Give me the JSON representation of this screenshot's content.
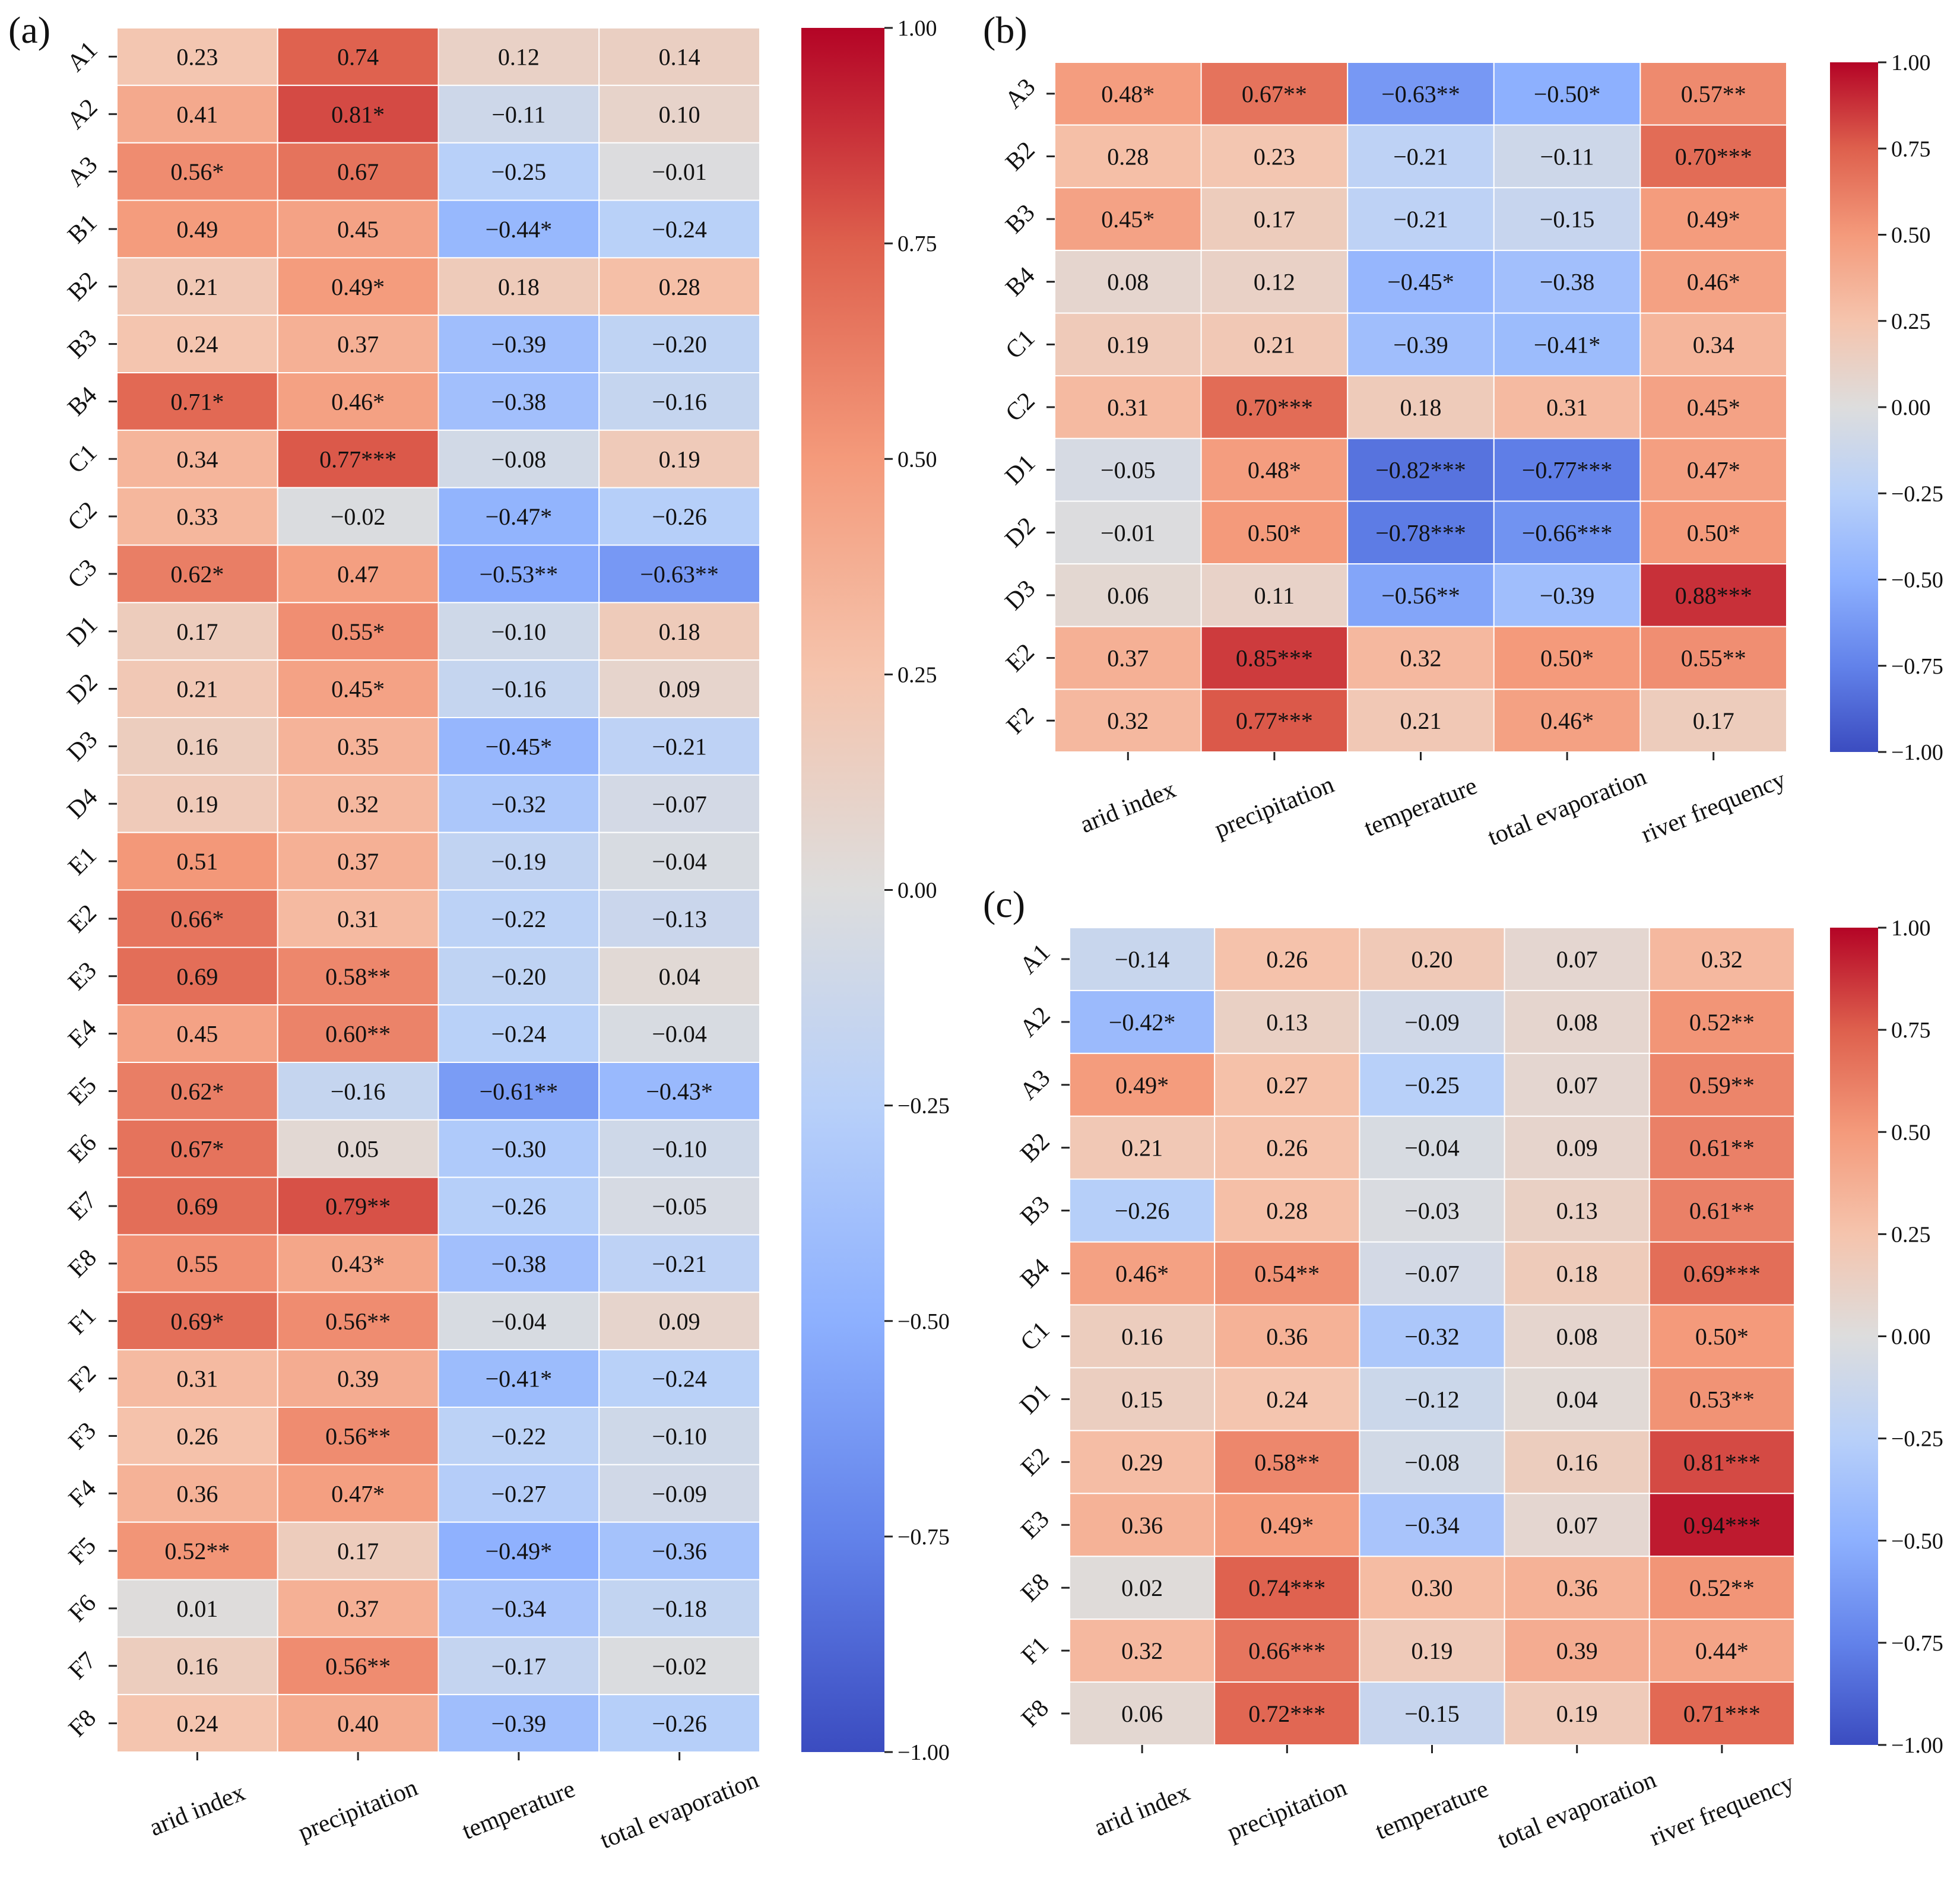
{
  "chart_data": [
    {
      "type": "heatmap",
      "panel_label": "(a)",
      "columns": [
        "arid index",
        "precipitation",
        "temperature",
        "total evaporation"
      ],
      "rows": [
        "A1",
        "A2",
        "A3",
        "B1",
        "B2",
        "B3",
        "B4",
        "C1",
        "C2",
        "C3",
        "D1",
        "D2",
        "D3",
        "D4",
        "E1",
        "E2",
        "E3",
        "E4",
        "E5",
        "E6",
        "E7",
        "E8",
        "F1",
        "F2",
        "F3",
        "F4",
        "F5",
        "F6",
        "F7",
        "F8"
      ],
      "values": [
        [
          0.23,
          0.74,
          0.12,
          0.14
        ],
        [
          0.41,
          0.81,
          -0.11,
          0.1
        ],
        [
          0.56,
          0.67,
          -0.25,
          -0.01
        ],
        [
          0.49,
          0.45,
          -0.44,
          -0.24
        ],
        [
          0.21,
          0.49,
          0.18,
          0.28
        ],
        [
          0.24,
          0.37,
          -0.39,
          -0.2
        ],
        [
          0.71,
          0.46,
          -0.38,
          -0.16
        ],
        [
          0.34,
          0.77,
          -0.08,
          0.19
        ],
        [
          0.33,
          -0.02,
          -0.47,
          -0.26
        ],
        [
          0.62,
          0.47,
          -0.53,
          -0.63
        ],
        [
          0.17,
          0.55,
          -0.1,
          0.18
        ],
        [
          0.21,
          0.45,
          -0.16,
          0.09
        ],
        [
          0.16,
          0.35,
          -0.45,
          -0.21
        ],
        [
          0.19,
          0.32,
          -0.32,
          -0.07
        ],
        [
          0.51,
          0.37,
          -0.19,
          -0.04
        ],
        [
          0.66,
          0.31,
          -0.22,
          -0.13
        ],
        [
          0.69,
          0.58,
          -0.2,
          0.04
        ],
        [
          0.45,
          0.6,
          -0.24,
          -0.04
        ],
        [
          0.62,
          -0.16,
          -0.61,
          -0.43
        ],
        [
          0.67,
          0.05,
          -0.3,
          -0.1
        ],
        [
          0.69,
          0.79,
          -0.26,
          -0.05
        ],
        [
          0.55,
          0.43,
          -0.38,
          -0.21
        ],
        [
          0.69,
          0.56,
          -0.04,
          0.09
        ],
        [
          0.31,
          0.39,
          -0.41,
          -0.24
        ],
        [
          0.26,
          0.56,
          -0.22,
          -0.1
        ],
        [
          0.36,
          0.47,
          -0.27,
          -0.09
        ],
        [
          0.52,
          0.17,
          -0.49,
          -0.36
        ],
        [
          0.01,
          0.37,
          -0.34,
          -0.18
        ],
        [
          0.16,
          0.56,
          -0.17,
          -0.02
        ],
        [
          0.24,
          0.4,
          -0.39,
          -0.26
        ]
      ],
      "labels": [
        [
          "0.23",
          "0.74",
          "0.12",
          "0.14"
        ],
        [
          "0.41",
          "0.81*",
          "−0.11",
          "0.10"
        ],
        [
          "0.56*",
          "0.67",
          "−0.25",
          "−0.01"
        ],
        [
          "0.49",
          "0.45",
          "−0.44*",
          "−0.24"
        ],
        [
          "0.21",
          "0.49*",
          "0.18",
          "0.28"
        ],
        [
          "0.24",
          "0.37",
          "−0.39",
          "−0.20"
        ],
        [
          "0.71*",
          "0.46*",
          "−0.38",
          "−0.16"
        ],
        [
          "0.34",
          "0.77***",
          "−0.08",
          "0.19"
        ],
        [
          "0.33",
          "−0.02",
          "−0.47*",
          "−0.26"
        ],
        [
          "0.62*",
          "0.47",
          "−0.53**",
          "−0.63**"
        ],
        [
          "0.17",
          "0.55*",
          "−0.10",
          "0.18"
        ],
        [
          "0.21",
          "0.45*",
          "−0.16",
          "0.09"
        ],
        [
          "0.16",
          "0.35",
          "−0.45*",
          "−0.21"
        ],
        [
          "0.19",
          "0.32",
          "−0.32",
          "−0.07"
        ],
        [
          "0.51",
          "0.37",
          "−0.19",
          "−0.04"
        ],
        [
          "0.66*",
          "0.31",
          "−0.22",
          "−0.13"
        ],
        [
          "0.69",
          "0.58**",
          "−0.20",
          "0.04"
        ],
        [
          "0.45",
          "0.60**",
          "−0.24",
          "−0.04"
        ],
        [
          "0.62*",
          "−0.16",
          "−0.61**",
          "−0.43*"
        ],
        [
          "0.67*",
          "0.05",
          "−0.30",
          "−0.10"
        ],
        [
          "0.69",
          "0.79**",
          "−0.26",
          "−0.05"
        ],
        [
          "0.55",
          "0.43*",
          "−0.38",
          "−0.21"
        ],
        [
          "0.69*",
          "0.56**",
          "−0.04",
          "0.09"
        ],
        [
          "0.31",
          "0.39",
          "−0.41*",
          "−0.24"
        ],
        [
          "0.26",
          "0.56**",
          "−0.22",
          "−0.10"
        ],
        [
          "0.36",
          "0.47*",
          "−0.27",
          "−0.09"
        ],
        [
          "0.52**",
          "0.17",
          "−0.49*",
          "−0.36"
        ],
        [
          "0.01",
          "0.37",
          "−0.34",
          "−0.18"
        ],
        [
          "0.16",
          "0.56**",
          "−0.17",
          "−0.02"
        ],
        [
          "0.24",
          "0.40",
          "−0.39",
          "−0.26"
        ]
      ],
      "colorbar": {
        "range": [
          -1,
          1
        ],
        "ticks": [
          1.0,
          0.75,
          0.5,
          0.25,
          0.0,
          -0.25,
          -0.5,
          -0.75,
          -1.0
        ],
        "tick_labels": [
          "1.00",
          "0.75",
          "0.50",
          "0.25",
          "0.00",
          "−0.25",
          "−0.50",
          "−0.75",
          "−1.00"
        ]
      },
      "colormap": "coolwarm"
    },
    {
      "type": "heatmap",
      "panel_label": "(b)",
      "columns": [
        "arid index",
        "precipitation",
        "temperature",
        "total evaporation",
        "river frequency"
      ],
      "rows": [
        "A3",
        "B2",
        "B3",
        "B4",
        "C1",
        "C2",
        "D1",
        "D2",
        "D3",
        "E2",
        "F2"
      ],
      "values": [
        [
          0.48,
          0.67,
          -0.63,
          -0.5,
          0.57
        ],
        [
          0.28,
          0.23,
          -0.21,
          -0.11,
          0.7
        ],
        [
          0.45,
          0.17,
          -0.21,
          -0.15,
          0.49
        ],
        [
          0.08,
          0.12,
          -0.45,
          -0.38,
          0.46
        ],
        [
          0.19,
          0.21,
          -0.39,
          -0.41,
          0.34
        ],
        [
          0.31,
          0.7,
          0.18,
          0.31,
          0.45
        ],
        [
          -0.05,
          0.48,
          -0.82,
          -0.77,
          0.47
        ],
        [
          -0.01,
          0.5,
          -0.78,
          -0.66,
          0.5
        ],
        [
          0.06,
          0.11,
          -0.56,
          -0.39,
          0.88
        ],
        [
          0.37,
          0.85,
          0.32,
          0.5,
          0.55
        ],
        [
          0.32,
          0.77,
          0.21,
          0.46,
          0.17
        ]
      ],
      "labels": [
        [
          "0.48*",
          "0.67**",
          "−0.63**",
          "−0.50*",
          "0.57**"
        ],
        [
          "0.28",
          "0.23",
          "−0.21",
          "−0.11",
          "0.70***"
        ],
        [
          "0.45*",
          "0.17",
          "−0.21",
          "−0.15",
          "0.49*"
        ],
        [
          "0.08",
          "0.12",
          "−0.45*",
          "−0.38",
          "0.46*"
        ],
        [
          "0.19",
          "0.21",
          "−0.39",
          "−0.41*",
          "0.34"
        ],
        [
          "0.31",
          "0.70***",
          "0.18",
          "0.31",
          "0.45*"
        ],
        [
          "−0.05",
          "0.48*",
          "−0.82***",
          "−0.77***",
          "0.47*"
        ],
        [
          "−0.01",
          "0.50*",
          "−0.78***",
          "−0.66***",
          "0.50*"
        ],
        [
          "0.06",
          "0.11",
          "−0.56**",
          "−0.39",
          "0.88***"
        ],
        [
          "0.37",
          "0.85***",
          "0.32",
          "0.50*",
          "0.55**"
        ],
        [
          "0.32",
          "0.77***",
          "0.21",
          "0.46*",
          "0.17"
        ]
      ],
      "colorbar": {
        "range": [
          -1,
          1
        ],
        "ticks": [
          1.0,
          0.75,
          0.5,
          0.25,
          0.0,
          -0.25,
          -0.5,
          -0.75,
          -1.0
        ],
        "tick_labels": [
          "1.00",
          "0.75",
          "0.50",
          "0.25",
          "0.00",
          "−0.25",
          "−0.50",
          "−0.75",
          "−1.00"
        ]
      },
      "colormap": "coolwarm"
    },
    {
      "type": "heatmap",
      "panel_label": "(c)",
      "columns": [
        "arid index",
        "precipitation",
        "temperature",
        "total evaporation",
        "river frequency"
      ],
      "rows": [
        "A1",
        "A2",
        "A3",
        "B2",
        "B3",
        "B4",
        "C1",
        "D1",
        "E2",
        "E3",
        "E8",
        "F1",
        "F8"
      ],
      "values": [
        [
          -0.14,
          0.26,
          0.2,
          0.07,
          0.32
        ],
        [
          -0.42,
          0.13,
          -0.09,
          0.08,
          0.52
        ],
        [
          0.49,
          0.27,
          -0.25,
          0.07,
          0.59
        ],
        [
          0.21,
          0.26,
          -0.04,
          0.09,
          0.61
        ],
        [
          -0.26,
          0.28,
          -0.03,
          0.13,
          0.61
        ],
        [
          0.46,
          0.54,
          -0.07,
          0.18,
          0.69
        ],
        [
          0.16,
          0.36,
          -0.32,
          0.08,
          0.5
        ],
        [
          0.15,
          0.24,
          -0.12,
          0.04,
          0.53
        ],
        [
          0.29,
          0.58,
          -0.08,
          0.16,
          0.81
        ],
        [
          0.36,
          0.49,
          -0.34,
          0.07,
          0.94
        ],
        [
          0.02,
          0.74,
          0.3,
          0.36,
          0.52
        ],
        [
          0.32,
          0.66,
          0.19,
          0.39,
          0.44
        ],
        [
          0.06,
          0.72,
          -0.15,
          0.19,
          0.71
        ]
      ],
      "labels": [
        [
          "−0.14",
          "0.26",
          "0.20",
          "0.07",
          "0.32"
        ],
        [
          "−0.42*",
          "0.13",
          "−0.09",
          "0.08",
          "0.52**"
        ],
        [
          "0.49*",
          "0.27",
          "−0.25",
          "0.07",
          "0.59**"
        ],
        [
          "0.21",
          "0.26",
          "−0.04",
          "0.09",
          "0.61**"
        ],
        [
          "−0.26",
          "0.28",
          "−0.03",
          "0.13",
          "0.61**"
        ],
        [
          "0.46*",
          "0.54**",
          "−0.07",
          "0.18",
          "0.69***"
        ],
        [
          "0.16",
          "0.36",
          "−0.32",
          "0.08",
          "0.50*"
        ],
        [
          "0.15",
          "0.24",
          "−0.12",
          "0.04",
          "0.53**"
        ],
        [
          "0.29",
          "0.58**",
          "−0.08",
          "0.16",
          "0.81***"
        ],
        [
          "0.36",
          "0.49*",
          "−0.34",
          "0.07",
          "0.94***"
        ],
        [
          "0.02",
          "0.74***",
          "0.30",
          "0.36",
          "0.52**"
        ],
        [
          "0.32",
          "0.66***",
          "0.19",
          "0.39",
          "0.44*"
        ],
        [
          "0.06",
          "0.72***",
          "−0.15",
          "0.19",
          "0.71***"
        ]
      ],
      "colorbar": {
        "range": [
          -1,
          1
        ],
        "ticks": [
          1.0,
          0.75,
          0.5,
          0.25,
          0.0,
          -0.25,
          -0.5,
          -0.75,
          -1.0
        ],
        "tick_labels": [
          "1.00",
          "0.75",
          "0.50",
          "0.25",
          "0.00",
          "−0.25",
          "−0.50",
          "−0.75",
          "−1.00"
        ]
      },
      "colormap": "coolwarm"
    }
  ]
}
